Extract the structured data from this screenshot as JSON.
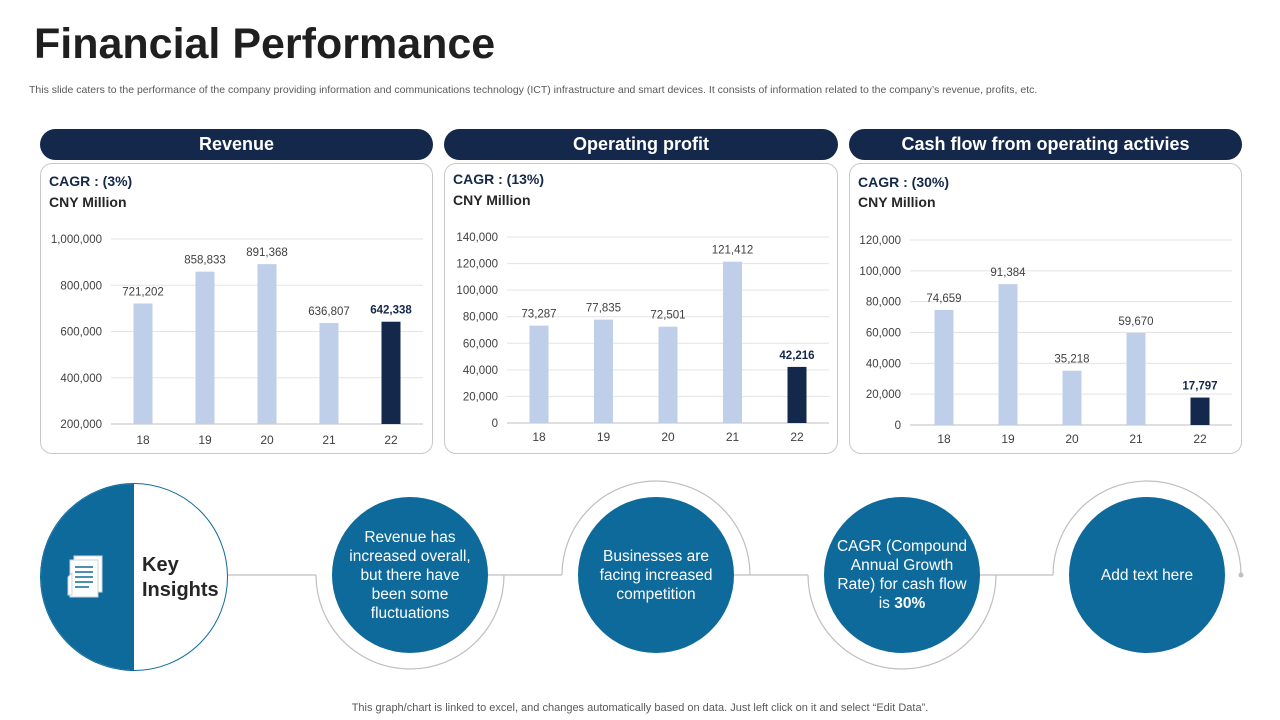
{
  "title": "Financial Performance",
  "subtitle": "This slide caters to the performance of the company providing information and communications technology (ICT) infrastructure and smart devices. It consists of information related to the company’s revenue, profits, etc.",
  "footer": "This graph/chart is linked to excel,  and changes automatically based on data. Just left click on it and select “Edit Data”.",
  "colors": {
    "navy": "#14284b",
    "bar_light": "#bfcfea",
    "bar_dark": "#14284b",
    "teal": "#0e6a9b"
  },
  "panels": [
    {
      "header": "Revenue",
      "cagr": "CAGR : (3%)",
      "unit": "CNY Million"
    },
    {
      "header": "Operating profit",
      "cagr": "CAGR : (13%)",
      "unit": "CNY Million"
    },
    {
      "header": "Cash flow from operating activies",
      "cagr": "CAGR : (30%)",
      "unit": "CNY Million"
    }
  ],
  "chart_data": [
    {
      "type": "bar",
      "title": "Revenue",
      "categories": [
        "18",
        "19",
        "20",
        "21",
        "22"
      ],
      "values": [
        721202,
        858833,
        891368,
        636807,
        642338
      ],
      "labels": [
        "721,202",
        "858,833",
        "891,368",
        "636,807",
        "642,338"
      ],
      "yticks": [
        "200,000",
        "400,000",
        "600,000",
        "800,000",
        "1,000,000"
      ],
      "ylim": [
        200000,
        1000000
      ],
      "highlight_index": 4
    },
    {
      "type": "bar",
      "title": "Operating profit",
      "categories": [
        "18",
        "19",
        "20",
        "21",
        "22"
      ],
      "values": [
        73287,
        77835,
        72501,
        121412,
        42216
      ],
      "labels": [
        "73,287",
        "77,835",
        "72,501",
        "121,412",
        "42,216"
      ],
      "yticks": [
        "0",
        "20,000",
        "40,000",
        "60,000",
        "80,000",
        "100,000",
        "120,000",
        "140,000"
      ],
      "ylim": [
        0,
        140000
      ],
      "highlight_index": 4
    },
    {
      "type": "bar",
      "title": "Cash flow from operating activies",
      "categories": [
        "18",
        "19",
        "20",
        "21",
        "22"
      ],
      "values": [
        74659,
        91384,
        35218,
        59670,
        17797
      ],
      "labels": [
        "74,659",
        "91,384",
        "35,218",
        "59,670",
        "17,797"
      ],
      "yticks": [
        "0",
        "20,000",
        "40,000",
        "60,000",
        "80,000",
        "100,000",
        "120,000"
      ],
      "ylim": [
        0,
        120000
      ],
      "highlight_index": 4
    }
  ],
  "insights": {
    "label_line1": "Key",
    "label_line2": "Insights",
    "bubble1": "Revenue has increased overall, but there have been some fluctuations",
    "bubble2": "Businesses are facing increased competition",
    "bubble3_text": "CAGR (Compound Annual Growth Rate) for cash flow is ",
    "bubble3_bold": "30%",
    "bubble4": "Add text here"
  }
}
